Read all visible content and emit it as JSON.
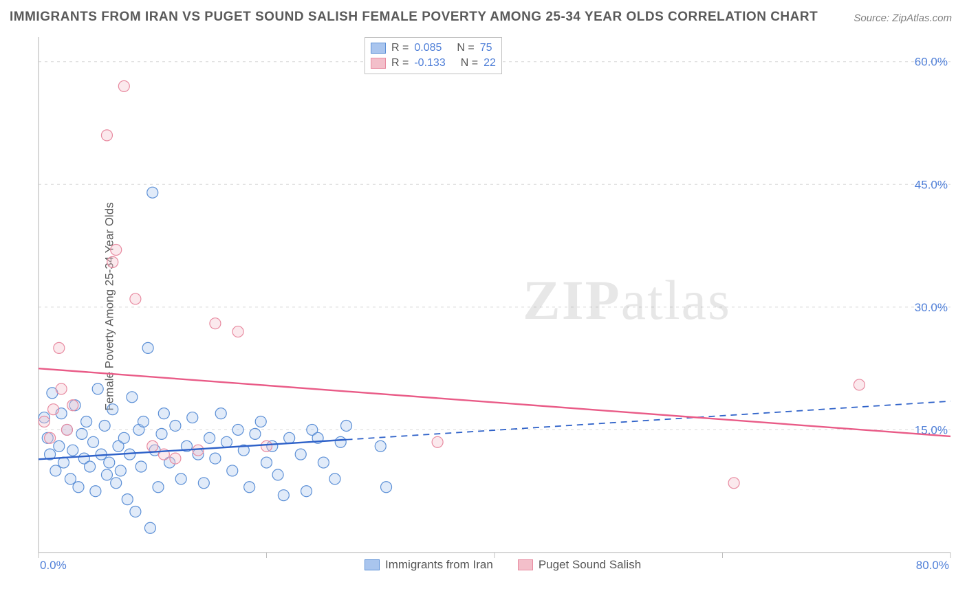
{
  "title": "IMMIGRANTS FROM IRAN VS PUGET SOUND SALISH FEMALE POVERTY AMONG 25-34 YEAR OLDS CORRELATION CHART",
  "source_prefix": "Source: ",
  "source_name": "ZipAtlas.com",
  "ylabel": "Female Poverty Among 25-34 Year Olds",
  "watermark_bold": "ZIP",
  "watermark_rest": "atlas",
  "chart": {
    "type": "scatter",
    "xlim": [
      0,
      80
    ],
    "ylim": [
      0,
      63
    ],
    "xticks": [
      0,
      80
    ],
    "xtick_labels": [
      "0.0%",
      "80.0%"
    ],
    "yticks": [
      15,
      30,
      45,
      60
    ],
    "ytick_labels": [
      "15.0%",
      "30.0%",
      "45.0%",
      "60.0%"
    ],
    "background_color": "#ffffff",
    "grid_color": "#d8d8d8",
    "axis_color": "#bfbfbf",
    "tick_color": "#bfbfbf",
    "label_color": "#4f7fd8",
    "marker_radius": 8,
    "marker_stroke_width": 1.2,
    "marker_fill_opacity": 0.35,
    "series": [
      {
        "id": "iran",
        "label": "Immigrants from Iran",
        "color_fill": "#a9c5ee",
        "color_stroke": "#5b8fd6",
        "trend_color": "#2f62c9",
        "trend_width": 2.4,
        "stats": {
          "R_label": "R",
          "R": "0.085",
          "N_label": "N",
          "N": "75"
        },
        "trend": {
          "y_at_xmin": 11.4,
          "y_at_xmax": 18.5,
          "solid_until_x": 27
        },
        "points": [
          [
            0.5,
            16.5
          ],
          [
            0.8,
            14.0
          ],
          [
            1.0,
            12.0
          ],
          [
            1.2,
            19.5
          ],
          [
            1.5,
            10.0
          ],
          [
            1.8,
            13.0
          ],
          [
            2.0,
            17.0
          ],
          [
            2.2,
            11.0
          ],
          [
            2.5,
            15.0
          ],
          [
            2.8,
            9.0
          ],
          [
            3.0,
            12.5
          ],
          [
            3.2,
            18.0
          ],
          [
            3.5,
            8.0
          ],
          [
            3.8,
            14.5
          ],
          [
            4.0,
            11.5
          ],
          [
            4.2,
            16.0
          ],
          [
            4.5,
            10.5
          ],
          [
            4.8,
            13.5
          ],
          [
            5.0,
            7.5
          ],
          [
            5.2,
            20.0
          ],
          [
            5.5,
            12.0
          ],
          [
            5.8,
            15.5
          ],
          [
            6.0,
            9.5
          ],
          [
            6.2,
            11.0
          ],
          [
            6.5,
            17.5
          ],
          [
            6.8,
            8.5
          ],
          [
            7.0,
            13.0
          ],
          [
            7.2,
            10.0
          ],
          [
            7.5,
            14.0
          ],
          [
            7.8,
            6.5
          ],
          [
            8.0,
            12.0
          ],
          [
            8.2,
            19.0
          ],
          [
            8.5,
            5.0
          ],
          [
            8.8,
            15.0
          ],
          [
            9.0,
            10.5
          ],
          [
            9.2,
            16.0
          ],
          [
            9.6,
            25.0
          ],
          [
            9.8,
            3.0
          ],
          [
            10.0,
            44.0
          ],
          [
            10.2,
            12.5
          ],
          [
            10.5,
            8.0
          ],
          [
            10.8,
            14.5
          ],
          [
            11.0,
            17.0
          ],
          [
            11.5,
            11.0
          ],
          [
            12.0,
            15.5
          ],
          [
            12.5,
            9.0
          ],
          [
            13.0,
            13.0
          ],
          [
            13.5,
            16.5
          ],
          [
            14.0,
            12.0
          ],
          [
            14.5,
            8.5
          ],
          [
            15.0,
            14.0
          ],
          [
            15.5,
            11.5
          ],
          [
            16.0,
            17.0
          ],
          [
            16.5,
            13.5
          ],
          [
            17.0,
            10.0
          ],
          [
            17.5,
            15.0
          ],
          [
            18.0,
            12.5
          ],
          [
            18.5,
            8.0
          ],
          [
            19.0,
            14.5
          ],
          [
            19.5,
            16.0
          ],
          [
            20.0,
            11.0
          ],
          [
            20.5,
            13.0
          ],
          [
            21.0,
            9.5
          ],
          [
            21.5,
            7.0
          ],
          [
            22.0,
            14.0
          ],
          [
            23.0,
            12.0
          ],
          [
            23.5,
            7.5
          ],
          [
            24.0,
            15.0
          ],
          [
            24.5,
            14.0
          ],
          [
            25.0,
            11.0
          ],
          [
            26.0,
            9.0
          ],
          [
            26.5,
            13.5
          ],
          [
            27.0,
            15.5
          ],
          [
            30.0,
            13.0
          ],
          [
            30.5,
            8.0
          ]
        ]
      },
      {
        "id": "salish",
        "label": "Puget Sound Salish",
        "color_fill": "#f3bfca",
        "color_stroke": "#e88aa0",
        "trend_color": "#e95b87",
        "trend_width": 2.4,
        "stats": {
          "R_label": "R",
          "R": "-0.133",
          "N_label": "N",
          "N": "22"
        },
        "trend": {
          "y_at_xmin": 22.5,
          "y_at_xmax": 14.2,
          "solid_until_x": 80
        },
        "points": [
          [
            0.5,
            16.0
          ],
          [
            1.0,
            14.0
          ],
          [
            1.3,
            17.5
          ],
          [
            1.8,
            25.0
          ],
          [
            2.0,
            20.0
          ],
          [
            2.5,
            15.0
          ],
          [
            3.0,
            18.0
          ],
          [
            6.0,
            51.0
          ],
          [
            6.5,
            35.5
          ],
          [
            6.8,
            37.0
          ],
          [
            7.5,
            57.0
          ],
          [
            8.5,
            31.0
          ],
          [
            10.0,
            13.0
          ],
          [
            11.0,
            12.0
          ],
          [
            12.0,
            11.5
          ],
          [
            14.0,
            12.5
          ],
          [
            15.5,
            28.0
          ],
          [
            17.5,
            27.0
          ],
          [
            20.0,
            13.0
          ],
          [
            35.0,
            13.5
          ],
          [
            61.0,
            8.5
          ],
          [
            72.0,
            20.5
          ]
        ]
      }
    ]
  },
  "legend_top": {
    "eq": "="
  },
  "legend_bottom": {}
}
